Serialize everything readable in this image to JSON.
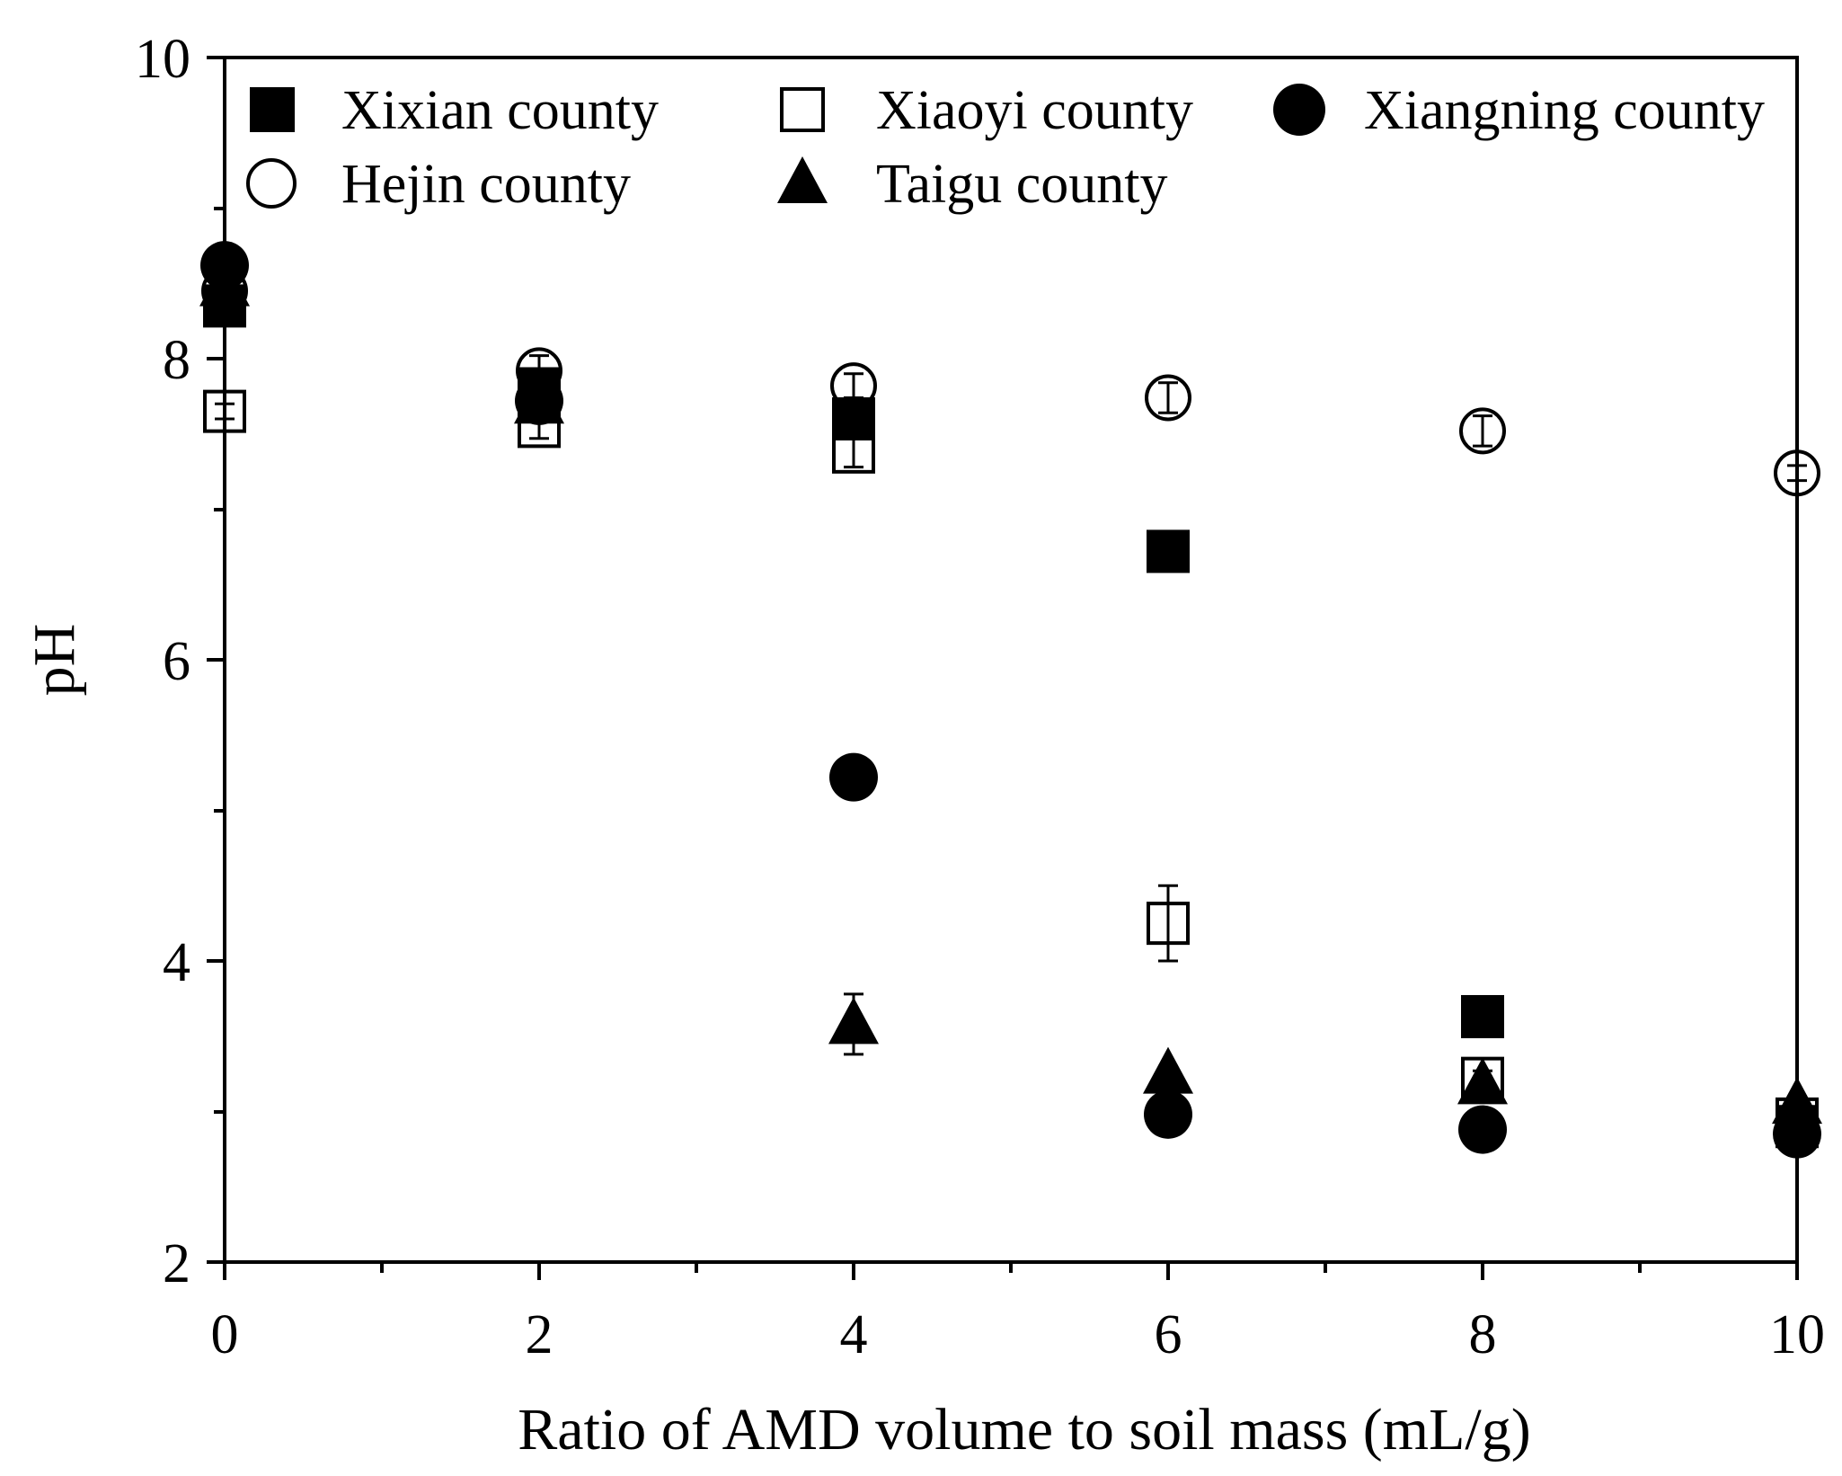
{
  "chart_data": {
    "type": "scatter",
    "title": "",
    "xlabel": "Ratio of AMD volume to soil mass (mL/g)",
    "ylabel": "pH",
    "xlim": [
      0,
      10
    ],
    "ylim": [
      2,
      10
    ],
    "xticks": [
      0,
      2,
      4,
      6,
      8,
      10
    ],
    "yticks": [
      2,
      4,
      6,
      8,
      10
    ],
    "xtick_labels": [
      "0",
      "2",
      "4",
      "6",
      "8",
      "10"
    ],
    "ytick_labels": [
      "2",
      "4",
      "6",
      "8",
      "10"
    ],
    "legend_position": "top",
    "colors": {
      "ink": "#000000",
      "background": "#ffffff"
    },
    "series": [
      {
        "name": "Xixian county",
        "marker": "filled-square",
        "x": [
          0,
          2,
          4,
          6,
          8,
          10
        ],
        "y": [
          8.35,
          7.8,
          7.6,
          6.72,
          3.63,
          2.9
        ],
        "err": [
          0.05,
          0.05,
          0.1,
          0.05,
          0.05,
          0.05
        ]
      },
      {
        "name": "Xiaoyi county",
        "marker": "open-square",
        "x": [
          0,
          2,
          4,
          6,
          8,
          10
        ],
        "y": [
          7.65,
          7.55,
          7.38,
          4.25,
          3.22,
          2.95
        ],
        "err": [
          0.05,
          0.08,
          0.1,
          0.25,
          0.05,
          0.05
        ]
      },
      {
        "name": "Xiangning county",
        "marker": "filled-circle",
        "x": [
          0,
          2,
          4,
          6,
          8,
          10
        ],
        "y": [
          8.62,
          7.72,
          5.22,
          2.98,
          2.88,
          2.85
        ],
        "err": [
          0.05,
          0.05,
          0.05,
          0.05,
          0.05,
          0.05
        ]
      },
      {
        "name": "Hejin county",
        "marker": "open-circle",
        "x": [
          0,
          2,
          4,
          6,
          8,
          10
        ],
        "y": [
          8.45,
          7.92,
          7.82,
          7.74,
          7.52,
          7.24
        ],
        "err": [
          0.05,
          0.1,
          0.08,
          0.1,
          0.1,
          0.05
        ]
      },
      {
        "name": "Taigu county",
        "marker": "filled-triangle",
        "x": [
          0,
          2,
          4,
          6,
          8,
          10
        ],
        "y": [
          8.48,
          7.7,
          3.58,
          3.25,
          3.18,
          3.05
        ],
        "err": [
          0.05,
          0.05,
          0.2,
          0.05,
          0.05,
          0.05
        ]
      }
    ]
  }
}
